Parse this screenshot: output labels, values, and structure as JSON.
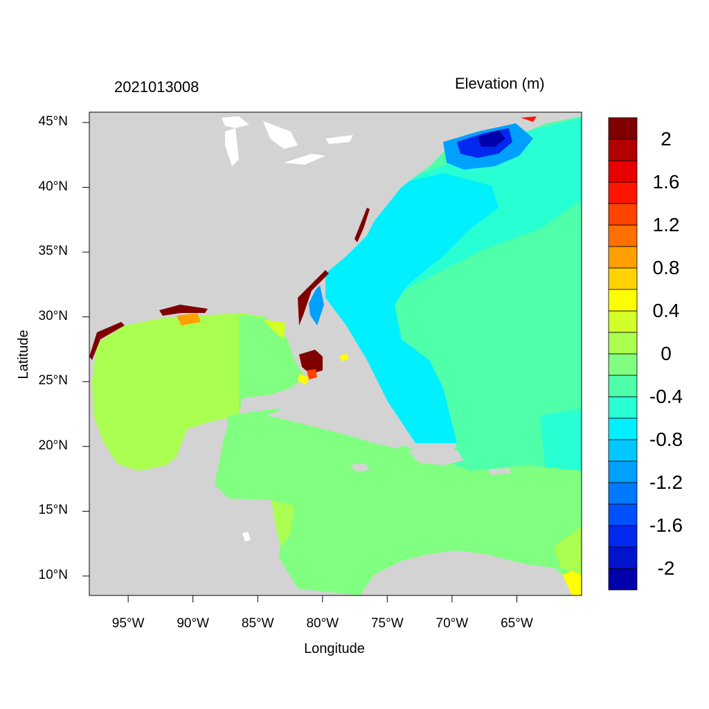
{
  "map": {
    "timestamp": "2021013008",
    "variable_title": "Elevation (m)",
    "x_axis_label": "Longitude",
    "y_axis_label": "Latitude",
    "extent": {
      "lon": [
        -98,
        -60
      ],
      "lat": [
        8.5,
        45.8
      ]
    },
    "lon_ticks": [
      {
        "value": -95,
        "label": "95°W"
      },
      {
        "value": -90,
        "label": "90°W"
      },
      {
        "value": -85,
        "label": "85°W"
      },
      {
        "value": -80,
        "label": "80°W"
      },
      {
        "value": -75,
        "label": "75°W"
      },
      {
        "value": -70,
        "label": "70°W"
      },
      {
        "value": -65,
        "label": "65°W"
      }
    ],
    "lat_ticks": [
      {
        "value": 45,
        "label": "45°N"
      },
      {
        "value": 40,
        "label": "40°N"
      },
      {
        "value": 35,
        "label": "35°N"
      },
      {
        "value": 30,
        "label": "30°N"
      },
      {
        "value": 25,
        "label": "25°N"
      },
      {
        "value": 20,
        "label": "20°N"
      },
      {
        "value": 15,
        "label": "15°N"
      },
      {
        "value": 10,
        "label": "10°N"
      }
    ],
    "land_color": "#d3d3d3",
    "colorbar": {
      "colors": [
        "#0000aa",
        "#0014cc",
        "#0028ee",
        "#0050ff",
        "#0078ff",
        "#00a0ff",
        "#00c8ff",
        "#00f0ff",
        "#28ffd2",
        "#50ffaa",
        "#80ff80",
        "#aaff50",
        "#d2ff28",
        "#ffff00",
        "#ffd200",
        "#ffa000",
        "#ff7000",
        "#ff4400",
        "#ff1500",
        "#e60000",
        "#b20000",
        "#800000"
      ],
      "labels": [
        "2",
        "1.6",
        "1.2",
        "0.8",
        "0.4",
        "0",
        "-0.4",
        "-0.8",
        "-1.2",
        "-1.6",
        "-2"
      ]
    }
  }
}
